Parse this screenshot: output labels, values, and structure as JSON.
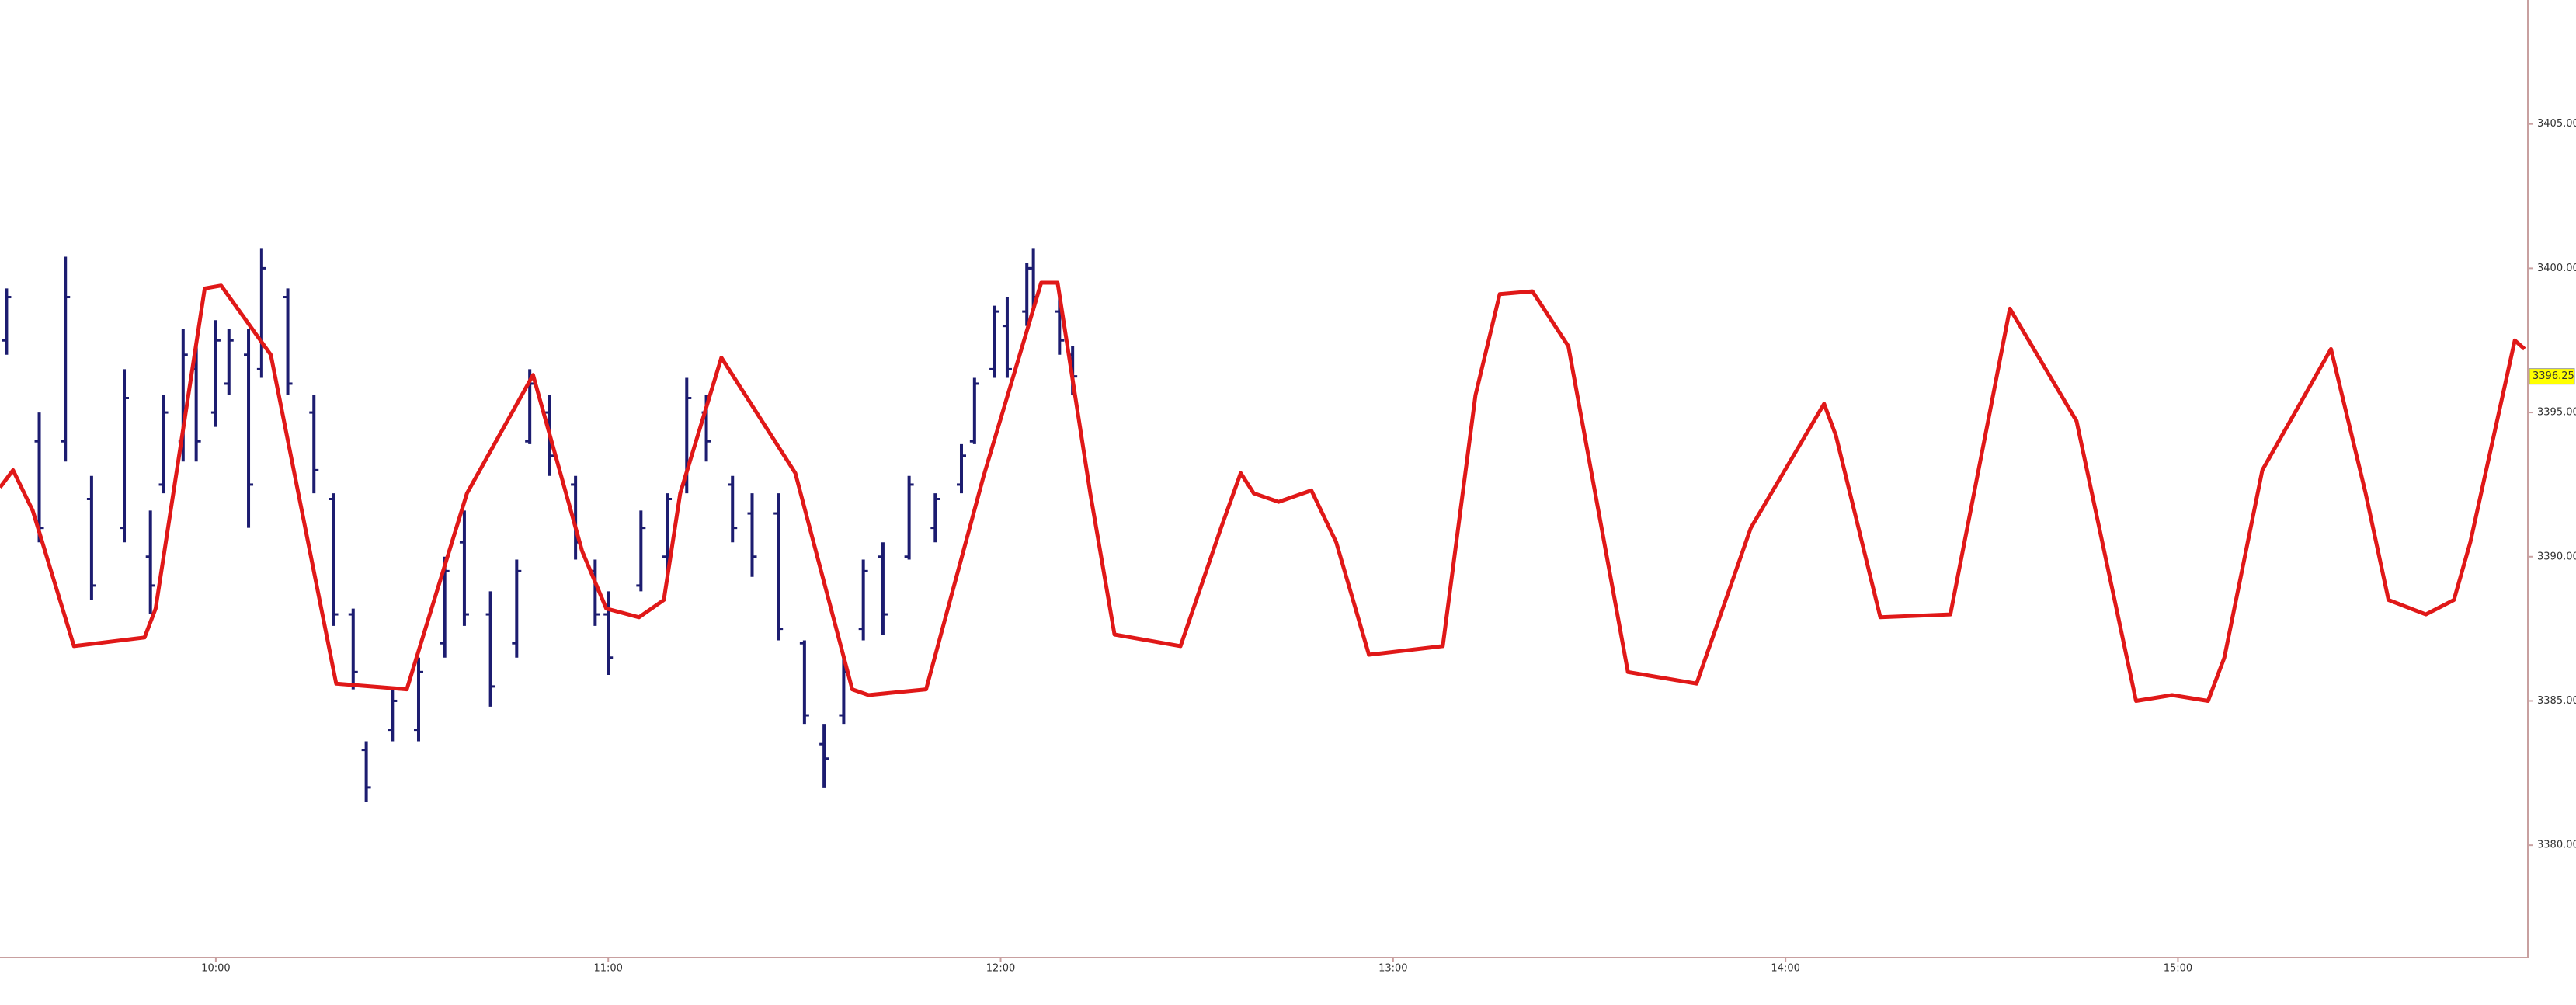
{
  "chart_data": {
    "type": "ohlc",
    "xlim": [
      567,
      953.5
    ],
    "ylim": [
      3376.1,
      3409.3
    ],
    "xticks": [
      {
        "value": 600,
        "label": "10:00"
      },
      {
        "value": 660,
        "label": "11:00"
      },
      {
        "value": 720,
        "label": "12:00"
      },
      {
        "value": 780,
        "label": "13:00"
      },
      {
        "value": 840,
        "label": "14:00"
      },
      {
        "value": 900,
        "label": "15:00"
      }
    ],
    "yticks": [
      {
        "value": 3380,
        "label": "3380.00"
      },
      {
        "value": 3385,
        "label": "3385.00"
      },
      {
        "value": 3390,
        "label": "3390.00"
      },
      {
        "value": 3395,
        "label": "3395.00"
      },
      {
        "value": 3400,
        "label": "3400.00"
      },
      {
        "value": 3405,
        "label": "3405.00"
      }
    ],
    "last_price": {
      "value": 3396.25,
      "label": "3396.25",
      "color": "#ffff00"
    },
    "ohlc": {
      "color": "#1c1c70",
      "x": [
        568,
        573,
        577,
        581,
        586,
        590,
        592,
        595,
        597,
        600,
        602,
        605,
        607,
        611,
        615,
        618,
        621,
        623,
        627,
        631,
        635,
        638,
        642,
        646,
        648,
        651,
        655,
        658,
        660,
        665,
        669,
        672,
        675,
        679,
        682,
        686,
        690,
        693,
        696,
        699,
        702,
        706,
        710,
        714,
        716,
        719,
        721,
        724,
        725,
        729,
        731
      ],
      "open": [
        3397.5,
        3394,
        3394,
        3392,
        3391,
        3390,
        3392.5,
        3394,
        3396.5,
        3395,
        3396,
        3397,
        3396.5,
        3399,
        3395,
        3392,
        3388,
        3383.3,
        3384,
        3384,
        3387,
        3390.5,
        3388,
        3387,
        3394,
        3395,
        3392.5,
        3389.5,
        3388,
        3389,
        3390,
        3392.5,
        3395,
        3392.5,
        3391.5,
        3391.5,
        3387,
        3383.5,
        3384.5,
        3387.5,
        3390,
        3390,
        3391,
        3392.5,
        3394,
        3396.5,
        3398,
        3398.5,
        3400,
        3398.5,
        3397
      ],
      "high": [
        3399.3,
        3395,
        3400.4,
        3392.8,
        3396.5,
        3391.6,
        3395.6,
        3397.9,
        3397.3,
        3398.2,
        3397.9,
        3397.9,
        3400.7,
        3399.3,
        3395.6,
        3392.2,
        3388.2,
        3383.6,
        3385.4,
        3386.5,
        3390,
        3391.6,
        3388.8,
        3389.9,
        3396.5,
        3395.6,
        3392.8,
        3389.9,
        3388.8,
        3391.6,
        3392.2,
        3396.2,
        3395.6,
        3392.8,
        3392.2,
        3392.2,
        3387.1,
        3384.2,
        3386.5,
        3389.9,
        3390.5,
        3392.8,
        3392.2,
        3393.9,
        3396.2,
        3398.7,
        3399,
        3400.2,
        3400.7,
        3399,
        3397.3
      ],
      "low": [
        3397,
        3390.5,
        3393.3,
        3388.5,
        3390.5,
        3388,
        3392.2,
        3393.3,
        3393.3,
        3394.5,
        3395.6,
        3391,
        3396.2,
        3395.6,
        3392.2,
        3387.6,
        3385.4,
        3381.5,
        3383.6,
        3383.6,
        3386.5,
        3387.6,
        3384.8,
        3386.5,
        3393.9,
        3392.8,
        3389.9,
        3387.6,
        3385.9,
        3388.8,
        3389.3,
        3392.2,
        3393.3,
        3390.5,
        3389.3,
        3387.1,
        3384.2,
        3382,
        3384.2,
        3387.1,
        3387.3,
        3389.9,
        3390.5,
        3392.2,
        3393.9,
        3396.2,
        3396.2,
        3398,
        3398.5,
        3397,
        3395.6
      ],
      "close": [
        3399,
        3391,
        3399,
        3389,
        3395.5,
        3389,
        3395,
        3397,
        3394,
        3397.5,
        3397.5,
        3392.5,
        3400,
        3396,
        3393,
        3388,
        3386,
        3382,
        3385,
        3386,
        3389.5,
        3388,
        3385.5,
        3389.5,
        3396,
        3393.5,
        3390.5,
        3388,
        3386.5,
        3391,
        3392,
        3395.5,
        3394,
        3391,
        3390,
        3387.5,
        3384.5,
        3383,
        3386,
        3389.5,
        3388,
        3392.5,
        3392,
        3393.5,
        3396,
        3398.5,
        3396.5,
        3400,
        3399,
        3397.5,
        3396.25
      ]
    },
    "line": {
      "color": "#e01818",
      "x": [
        567,
        569,
        572,
        578.3,
        589.1,
        590.8,
        598.3,
        600.8,
        608.4,
        618.4,
        629.2,
        638.4,
        648.5,
        656,
        659.7,
        664.7,
        668.5,
        671,
        677.3,
        688.6,
        697.3,
        699.8,
        708.6,
        717.4,
        726.2,
        728.7,
        733.7,
        737.4,
        747.5,
        753.7,
        756.7,
        758.7,
        762.5,
        767.5,
        771.3,
        776.3,
        787.6,
        792.6,
        796.3,
        801.3,
        806.8,
        815.9,
        826.4,
        834.7,
        845.9,
        847.7,
        854.5,
        865.2,
        870.8,
        874.3,
        884.5,
        893.6,
        899.1,
        904.6,
        907.1,
        912.9,
        923.4,
        928.7,
        932.2,
        937.9,
        942.2,
        944.7,
        951.5,
        953
      ],
      "values": [
        3392.4,
        3393,
        3391.6,
        3386.9,
        3387.2,
        3388.2,
        3399.3,
        3399.4,
        3397,
        3385.6,
        3385.4,
        3392.2,
        3396.3,
        3390.2,
        3388.2,
        3387.9,
        3388.5,
        3392.2,
        3396.9,
        3392.9,
        3385.4,
        3385.2,
        3385.4,
        3392.8,
        3399.5,
        3399.5,
        3392.2,
        3387.3,
        3386.9,
        3391,
        3392.9,
        3392.2,
        3391.9,
        3392.3,
        3390.5,
        3386.6,
        3386.9,
        3395.6,
        3399.1,
        3399.2,
        3397.3,
        3386,
        3385.6,
        3391,
        3395.3,
        3394.2,
        3387.9,
        3388,
        3394.5,
        3398.6,
        3394.7,
        3385,
        3385.2,
        3385,
        3386.5,
        3393,
        3397.2,
        3392.2,
        3388.5,
        3388,
        3388.5,
        3390.5,
        3397.5,
        3397.2
      ]
    }
  }
}
